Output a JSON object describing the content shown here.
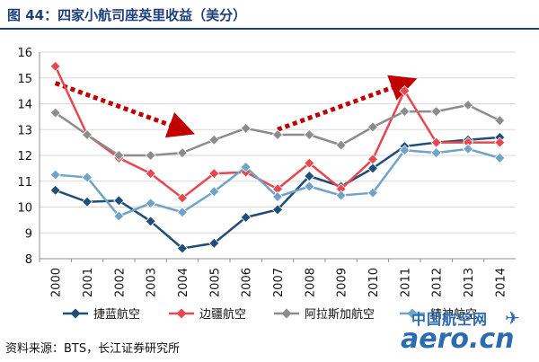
{
  "figure": {
    "title": "图 44：四家小航司座英里收益（美分）",
    "source": "资料来源：BTS，长江证券研究所",
    "watermark_cn": "中国航空网",
    "watermark_en": "aero.cn"
  },
  "chart_data": {
    "type": "line",
    "categories": [
      "2000",
      "2001",
      "2002",
      "2003",
      "2004",
      "2005",
      "2006",
      "2007",
      "2008",
      "2009",
      "2010",
      "2011",
      "2012",
      "2013",
      "2014"
    ],
    "ylim": [
      8,
      16
    ],
    "yticks": [
      8,
      9,
      10,
      11,
      12,
      13,
      14,
      15,
      16
    ],
    "grid": true,
    "legend_position": "bottom",
    "series": [
      {
        "name": "捷蓝航空",
        "color": "#1f4e79",
        "marker": "diamond",
        "values": [
          10.65,
          10.2,
          10.25,
          9.45,
          8.4,
          8.6,
          9.6,
          9.9,
          11.2,
          10.8,
          11.5,
          12.35,
          12.5,
          12.6,
          12.7
        ]
      },
      {
        "name": "边疆航空",
        "color": "#e8474f",
        "marker": "diamond",
        "values": [
          15.45,
          12.8,
          11.9,
          11.3,
          10.35,
          11.3,
          11.35,
          10.7,
          11.7,
          10.7,
          11.85,
          14.5,
          12.5,
          12.5,
          12.5
        ]
      },
      {
        "name": "阿拉斯加航空",
        "color": "#8c8c8c",
        "marker": "diamond",
        "values": [
          13.65,
          12.8,
          12.0,
          12.0,
          12.1,
          12.6,
          13.05,
          12.8,
          12.8,
          12.4,
          13.1,
          13.7,
          13.7,
          13.95,
          13.35
        ]
      },
      {
        "name": "精神航空",
        "color": "#6fa3c7",
        "marker": "diamond",
        "values": [
          11.25,
          11.15,
          9.65,
          10.15,
          9.8,
          10.6,
          11.55,
          10.4,
          10.8,
          10.45,
          10.55,
          12.2,
          12.1,
          12.25,
          11.9
        ]
      }
    ],
    "annotations": [
      {
        "type": "dotted-arrow",
        "color": "#c00000",
        "from": {
          "x": "2000",
          "y": 14.8
        },
        "to": {
          "x": "2004",
          "y": 13.0
        }
      },
      {
        "type": "dotted-arrow",
        "color": "#c00000",
        "from": {
          "x": "2007",
          "y": 13.0
        },
        "to": {
          "x": "2011",
          "y": 14.8
        }
      }
    ]
  }
}
